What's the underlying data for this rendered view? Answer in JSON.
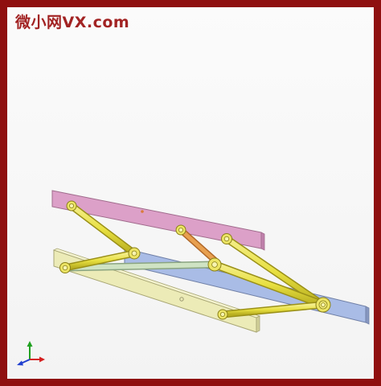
{
  "watermark": {
    "text": "微小网VX.com",
    "color": "#a22323"
  },
  "frame": {
    "border_color": "#8f1010",
    "background": "#f6f6f6"
  },
  "scene": {
    "plate_colors": {
      "top_plate": "#dca0c8",
      "middle_plate": "#a9bce6",
      "bottom_plate": "#ecebb7"
    },
    "link_colors": {
      "yellow_links": "#e8e040",
      "pale_green_link": "#cfe3c3",
      "orange_link": "#e8a050"
    },
    "axis_triad_colors": {
      "x": "#d52020",
      "y": "#20a020",
      "z": "#2040d0"
    }
  }
}
